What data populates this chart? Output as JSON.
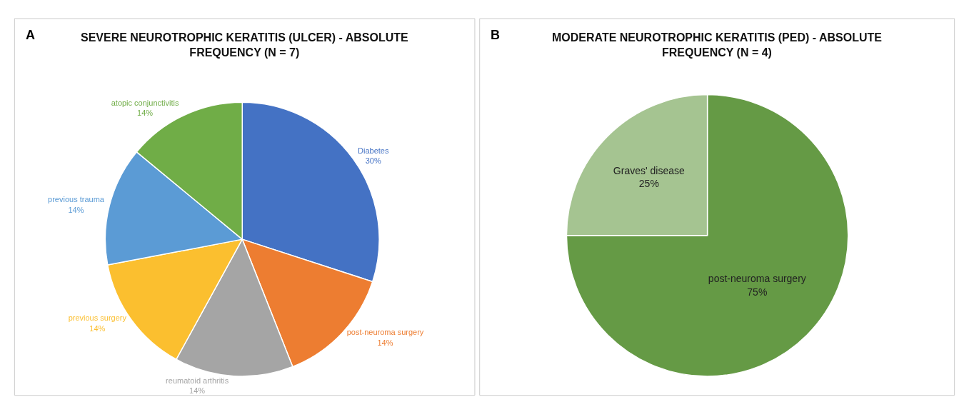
{
  "chart_data": [
    {
      "type": "pie",
      "title": "SEVERE NEUROTROPHIC KERATITIS (ULCER) - ABSOLUTE FREQUENCY (N = 7)",
      "annotations": [
        "A"
      ],
      "categories": [
        "Diabetes",
        "post-neuroma surgery",
        "reumatoid arthritis",
        "previous surgery",
        "previous trauma",
        "atopic conjunctivitis"
      ],
      "values": [
        30,
        14,
        14,
        14,
        14,
        14
      ],
      "value_labels": [
        "30%",
        "14%",
        "14%",
        "14%",
        "14%",
        "14%"
      ],
      "colors": [
        "#4472c4",
        "#ed7d31",
        "#a5a5a5",
        "#fbbf2f",
        "#5b9bd5",
        "#70ad47"
      ]
    },
    {
      "type": "pie",
      "title": "MODERATE NEUROTROPHIC KERATITIS (PED) - ABSOLUTE FREQUENCY (N = 4)",
      "annotations": [
        "B"
      ],
      "categories": [
        "post-neuroma surgery",
        "Graves' disease"
      ],
      "values": [
        75,
        25
      ],
      "value_labels": [
        "75%",
        "25%"
      ],
      "colors": [
        "#659a45",
        "#a5c491"
      ]
    }
  ]
}
